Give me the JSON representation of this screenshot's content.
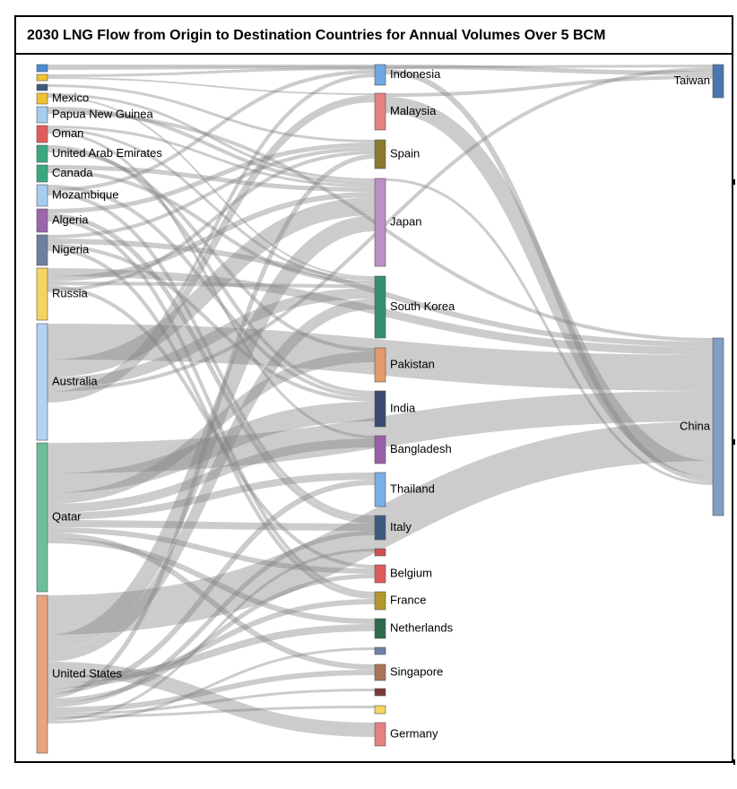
{
  "title": "2030 LNG Flow from Origin to Destination Countries for Annual Volumes Over 5 BCM",
  "colors": {
    "link": "#7f7f7f",
    "node_border": "#555555"
  },
  "origins": [
    {
      "id": "o1",
      "label": "",
      "color": "#4a8ad6"
    },
    {
      "id": "o2",
      "label": "",
      "color": "#f2c230"
    },
    {
      "id": "o3",
      "label": "",
      "color": "#3d5a80"
    },
    {
      "id": "mexico",
      "label": "Mexico",
      "color": "#f2c230"
    },
    {
      "id": "png",
      "label": "Papua New Guinea",
      "color": "#a6cdf0"
    },
    {
      "id": "oman",
      "label": "Oman",
      "color": "#e05c5c"
    },
    {
      "id": "uae",
      "label": "United Arab Emirates",
      "color": "#3aa87f"
    },
    {
      "id": "canada",
      "label": "Canada",
      "color": "#3aa87f"
    },
    {
      "id": "mozambique",
      "label": "Mozambique",
      "color": "#a6cdf0"
    },
    {
      "id": "algeria",
      "label": "Algeria",
      "color": "#9b67aa"
    },
    {
      "id": "nigeria",
      "label": "Nigeria",
      "color": "#6f7fa0"
    },
    {
      "id": "russia",
      "label": "Russia",
      "color": "#f5d560"
    },
    {
      "id": "australia",
      "label": "Australia",
      "color": "#b3d3f2"
    },
    {
      "id": "qatar",
      "label": "Qatar",
      "color": "#6dbf9c"
    },
    {
      "id": "us",
      "label": "United States",
      "color": "#e8a47e"
    }
  ],
  "destinations": [
    {
      "id": "indonesia",
      "label": "Indonesia",
      "color": "#6ea7e3"
    },
    {
      "id": "malaysia",
      "label": "Malaysia",
      "color": "#e68080"
    },
    {
      "id": "spain",
      "label": "Spain",
      "color": "#8a7a2e"
    },
    {
      "id": "japan",
      "label": "Japan",
      "color": "#bc8fc7"
    },
    {
      "id": "skorea",
      "label": "South Korea",
      "color": "#35916d"
    },
    {
      "id": "pakistan",
      "label": "Pakistan",
      "color": "#e59a6b"
    },
    {
      "id": "india",
      "label": "India",
      "color": "#3b4a70"
    },
    {
      "id": "bangladesh",
      "label": "Bangladesh",
      "color": "#9a5fa8"
    },
    {
      "id": "thailand",
      "label": "Thailand",
      "color": "#7aafe8"
    },
    {
      "id": "italy",
      "label": "Italy",
      "color": "#3d5a80"
    },
    {
      "id": "d_small1",
      "label": "",
      "color": "#d14e4e"
    },
    {
      "id": "belgium",
      "label": "Belgium",
      "color": "#e05c5c"
    },
    {
      "id": "france",
      "label": "France",
      "color": "#b5982e"
    },
    {
      "id": "netherlands",
      "label": "Netherlands",
      "color": "#2e6b4f"
    },
    {
      "id": "d_small2",
      "label": "",
      "color": "#6f7fa8"
    },
    {
      "id": "singapore",
      "label": "Singapore",
      "color": "#a87458"
    },
    {
      "id": "d_small3",
      "label": "",
      "color": "#7a3a3a"
    },
    {
      "id": "d_small4",
      "label": "",
      "color": "#f5d560"
    },
    {
      "id": "germany",
      "label": "Germany",
      "color": "#e68080"
    }
  ],
  "final": [
    {
      "id": "taiwan",
      "label": "Taiwan",
      "color": "#4a77b0"
    },
    {
      "id": "china",
      "label": "China",
      "color": "#7f9fc0"
    }
  ]
}
